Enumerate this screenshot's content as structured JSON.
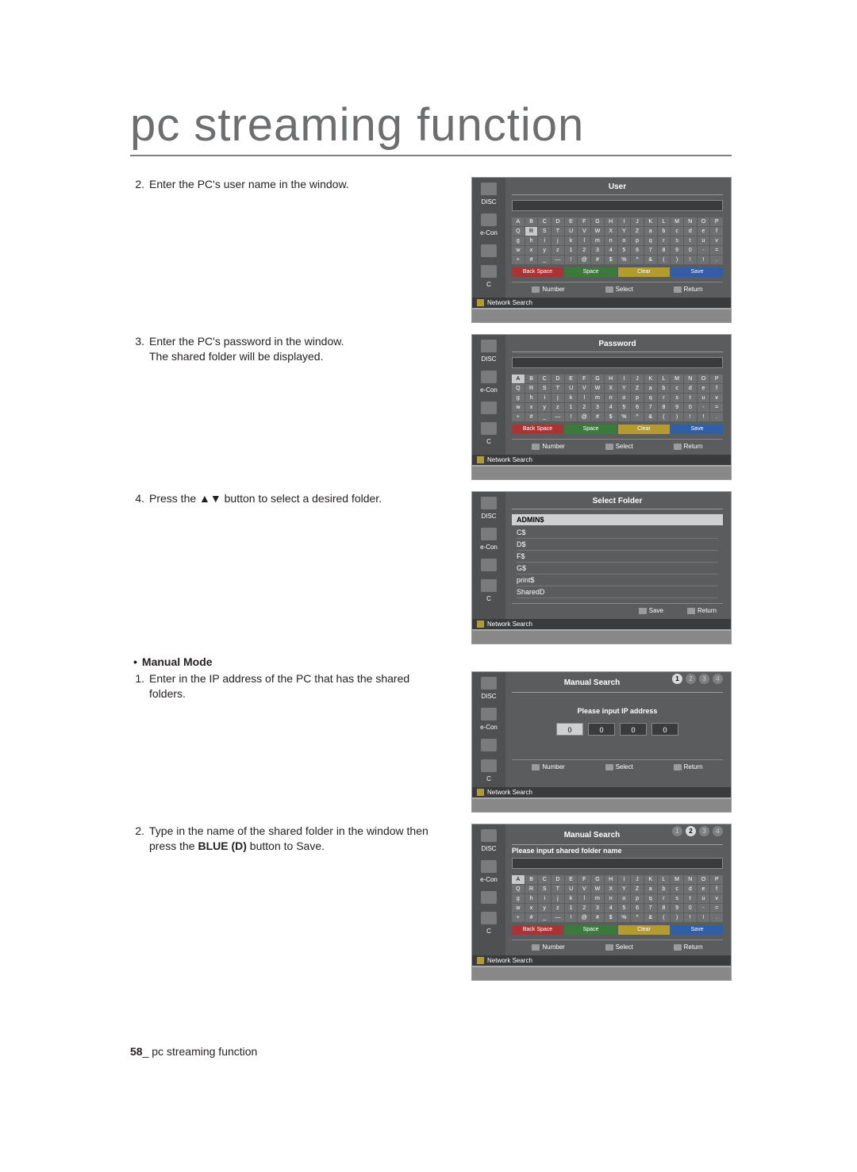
{
  "page": {
    "title": "pc streaming function",
    "footer_num": "58",
    "footer_sep": "_",
    "footer_text": "pc streaming function"
  },
  "steps_auto": {
    "s2_num": "2.",
    "s2": "Enter the PC's user name in the window.",
    "s3_num": "3.",
    "s3a": "Enter the PC's password in the window.",
    "s3b": "The shared folder will be displayed.",
    "s4_num": "4.",
    "s4": "Press the ▲▼ button to select a desired folder."
  },
  "manual": {
    "heading": "Manual Mode",
    "s1_num": "1.",
    "s1": "Enter in the IP address of the PC that has the shared folders.",
    "s2_num": "2.",
    "s2a": "Type in the name of the shared folder in the window then press the ",
    "s2b": "BLUE (D)",
    "s2c": " button to Save."
  },
  "shots": {
    "sidebar": {
      "disc": "DISC",
      "econ": "e-Con",
      "c": "C"
    },
    "kbd_rows": [
      [
        "A",
        "B",
        "C",
        "D",
        "E",
        "F",
        "G",
        "H",
        "I",
        "J",
        "K",
        "L",
        "M",
        "N",
        "O",
        "P"
      ],
      [
        "Q",
        "R",
        "S",
        "T",
        "U",
        "V",
        "W",
        "X",
        "Y",
        "Z",
        "a",
        "b",
        "c",
        "d",
        "e",
        "f"
      ],
      [
        "g",
        "h",
        "i",
        "j",
        "k",
        "l",
        "m",
        "n",
        "o",
        "p",
        "q",
        "r",
        "s",
        "t",
        "u",
        "v"
      ],
      [
        "w",
        "x",
        "y",
        "z",
        "1",
        "2",
        "3",
        "4",
        "5",
        "6",
        "7",
        "8",
        "9",
        "0",
        "-",
        "="
      ],
      [
        "+",
        "#",
        "_",
        "—",
        "!",
        "@",
        "#",
        "$",
        "%",
        "^",
        "&",
        "(",
        ")",
        "!",
        "!",
        "."
      ]
    ],
    "func": {
      "back": "Back Space",
      "space": "Space",
      "clear": "Clear",
      "save": "Save"
    },
    "hints": {
      "number": "Number",
      "select": "Select",
      "return": "Return"
    },
    "footbar": "Network Search",
    "user": {
      "title": "User",
      "hl_idx": 17
    },
    "pass": {
      "title": "Password",
      "hl_idx": 0
    },
    "folder": {
      "title": "Select Folder",
      "head": "ADMIN$",
      "items": [
        "C$",
        "D$",
        "F$",
        "G$",
        "print$",
        "SharedD"
      ],
      "save": "Save",
      "return": "Return"
    },
    "ip": {
      "title": "Manual Search",
      "prompt": "Please input IP address",
      "fields": [
        "0",
        "0",
        "0",
        "0"
      ],
      "active_step": 1
    },
    "name": {
      "title": "Manual Search",
      "prompt": "Please input shared folder name",
      "hl_idx": 0,
      "active_step": 2
    }
  },
  "colors": {
    "panel_bg": "#5b5c5e",
    "sidebar_bg": "#4f5052",
    "key_bg": "#6f7072",
    "key_hl": "#c9cacb"
  }
}
